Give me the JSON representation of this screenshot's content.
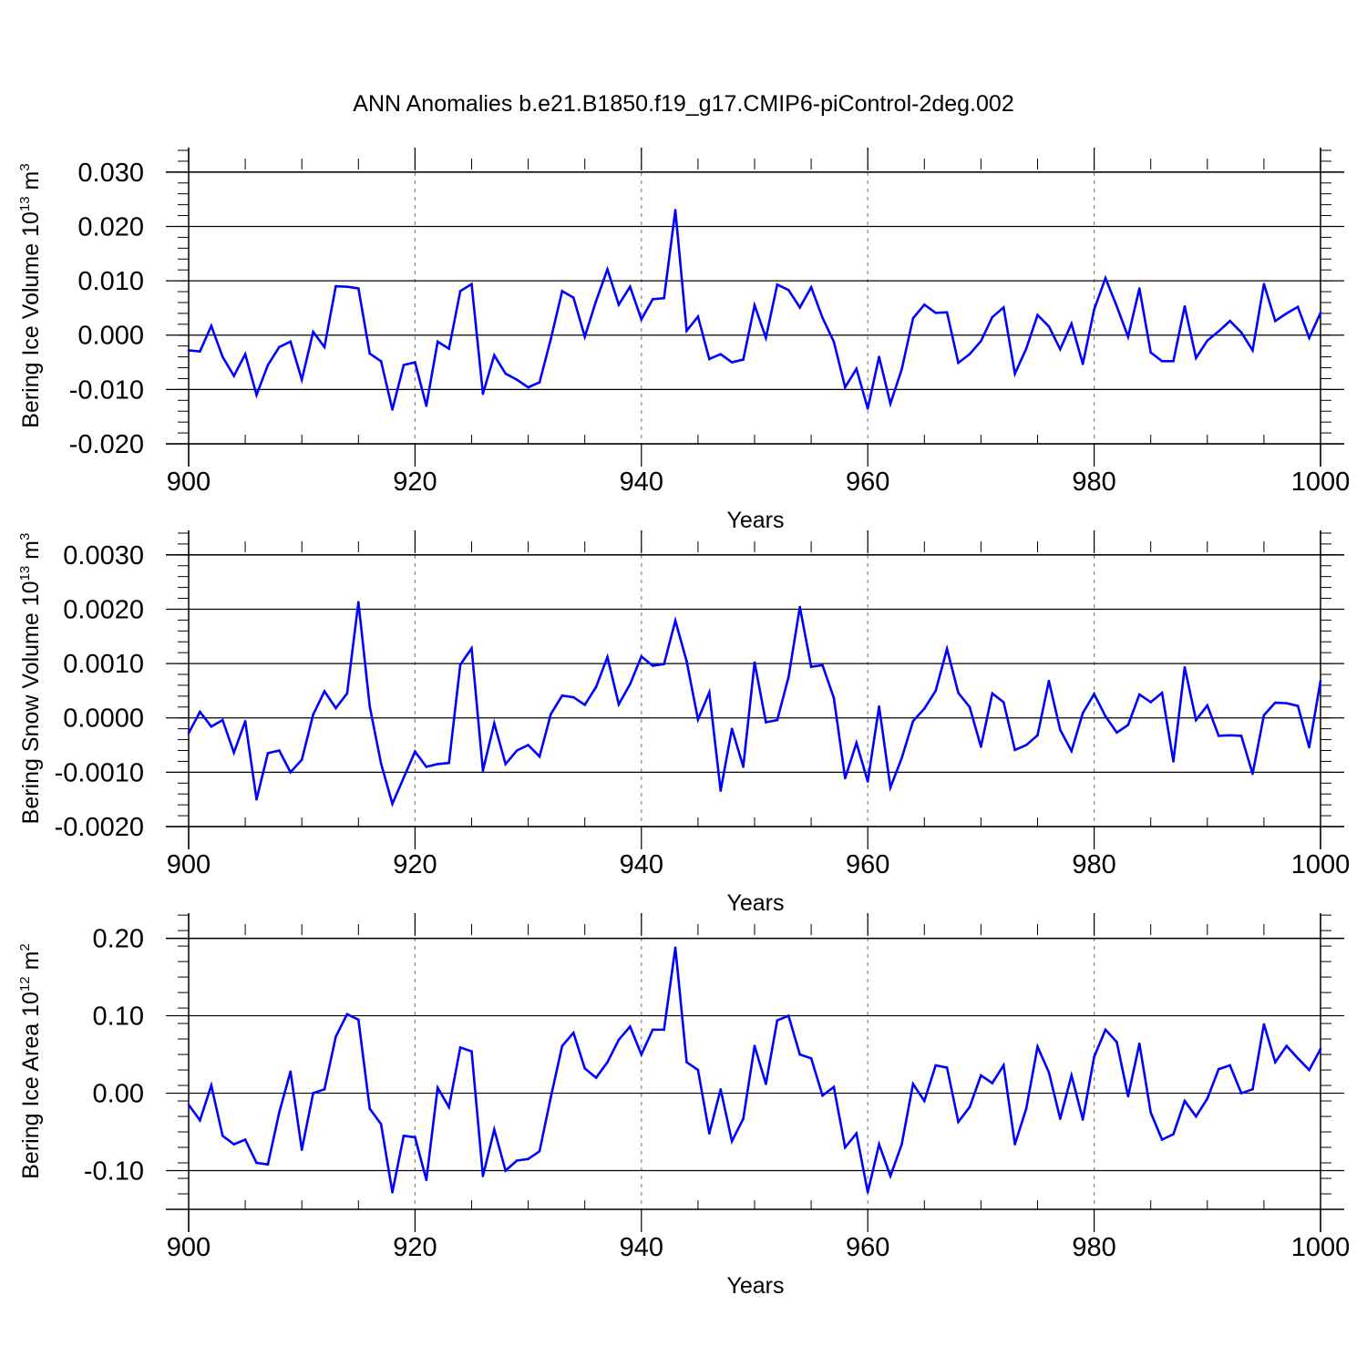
{
  "title": "ANN Anomalies b.e21.B1850.f19_g17.CMIP6-piControl-2deg.002",
  "colors": {
    "line": "#0000ff",
    "axis": "#000000",
    "grid": "#888888"
  },
  "chart_data": [
    {
      "type": "line",
      "ylabel_main": "Bering Ice Volume 10",
      "ylabel_sup": "13",
      "ylabel_unit": " m",
      "ylabel_unit_sup": "3",
      "xlabel": "Years",
      "xlim": [
        900,
        1000
      ],
      "ylim": [
        -0.02,
        0.0345
      ],
      "yticks": [
        -0.02,
        -0.01,
        0.0,
        0.01,
        0.02,
        0.03
      ],
      "ytick_labels": [
        "-0.020",
        "-0.010",
        "0.000",
        "0.010",
        "0.020",
        "0.030"
      ],
      "xticks": [
        900,
        920,
        940,
        960,
        980,
        1000
      ],
      "xtick_labels": [
        "900",
        "920",
        "940",
        "960",
        "980",
        "1000"
      ],
      "series": [
        {
          "name": "Bering Ice Volume",
          "x_start": 900,
          "values": [
            -0.0028,
            -0.003,
            0.0017,
            -0.004,
            -0.0075,
            -0.0035,
            -0.011,
            -0.0055,
            -0.0022,
            -0.0012,
            -0.0082,
            0.0006,
            -0.0022,
            0.009,
            0.0089,
            0.0086,
            -0.0034,
            -0.0048,
            -0.0137,
            -0.0055,
            -0.005,
            -0.013,
            -0.0012,
            -0.0025,
            0.0081,
            0.0094,
            -0.0108,
            -0.0037,
            -0.0071,
            -0.0082,
            -0.0096,
            -0.0087,
            -0.0007,
            0.0081,
            0.0069,
            -0.0003,
            0.0063,
            0.0121,
            0.0056,
            0.0089,
            0.0029,
            0.0066,
            0.0068,
            0.023,
            0.0008,
            0.0034,
            -0.0044,
            -0.0035,
            -0.005,
            -0.0045,
            0.0055,
            -0.0005,
            0.0093,
            0.0083,
            0.0051,
            0.0088,
            0.0032,
            -0.0012,
            -0.0096,
            -0.0062,
            -0.0135,
            -0.004,
            -0.0126,
            -0.0063,
            0.0031,
            0.0056,
            0.0041,
            0.0042,
            -0.0051,
            -0.0035,
            -0.0011,
            0.0033,
            0.0051,
            -0.0071,
            -0.0025,
            0.0037,
            0.0016,
            -0.0026,
            0.0021,
            -0.0053,
            0.0047,
            0.0105,
            0.0053,
            -0.0003,
            0.0086,
            -0.0032,
            -0.0048,
            -0.0048,
            0.0053,
            -0.0042,
            -0.001,
            0.0007,
            0.0026,
            0.0005,
            -0.0028,
            0.0094,
            0.0026,
            0.004,
            0.0052,
            -0.0005,
            0.0041
          ]
        }
      ]
    },
    {
      "type": "line",
      "ylabel_main": "Bering Snow Volume 10",
      "ylabel_sup": "13",
      "ylabel_unit": " m",
      "ylabel_unit_sup": "3",
      "xlabel": "Years",
      "xlim": [
        900,
        1000
      ],
      "ylim": [
        -0.002,
        0.00345
      ],
      "yticks": [
        -0.002,
        -0.001,
        0.0,
        0.001,
        0.002,
        0.003
      ],
      "ytick_labels": [
        "-0.0020",
        "-0.0010",
        "0.0000",
        "0.0010",
        "0.0020",
        "0.0030"
      ],
      "xticks": [
        900,
        920,
        940,
        960,
        980,
        1000
      ],
      "xtick_labels": [
        "900",
        "920",
        "940",
        "960",
        "980",
        "1000"
      ],
      "series": [
        {
          "name": "Bering Snow Volume",
          "x_start": 900,
          "values": [
            -0.00028,
            0.00011,
            -0.00016,
            -4e-05,
            -0.00064,
            -6e-05,
            -0.0015,
            -0.00065,
            -0.0006,
            -0.001,
            -0.00077,
            6e-05,
            0.00049,
            0.00018,
            0.00045,
            0.00213,
            0.00021,
            -0.00084,
            -0.00158,
            -0.0011,
            -0.00062,
            -0.0009,
            -0.00085,
            -0.00083,
            0.00098,
            0.00128,
            -0.00097,
            -0.0001,
            -0.00085,
            -0.0006,
            -0.0005,
            -0.00071,
            7e-05,
            0.00041,
            0.00038,
            0.00024,
            0.00057,
            0.00112,
            0.00025,
            0.00062,
            0.00113,
            0.00096,
            0.00099,
            0.00179,
            0.00104,
            -3e-05,
            0.00047,
            -0.00134,
            -0.0002,
            -0.0009,
            0.00102,
            -8e-05,
            -4e-05,
            0.00075,
            0.00204,
            0.00094,
            0.00097,
            0.00037,
            -0.00111,
            -0.00046,
            -0.00117,
            0.00021,
            -0.00128,
            -0.00074,
            -6e-05,
            0.00017,
            0.0005,
            0.00127,
            0.00046,
            0.0002,
            -0.00053,
            0.00045,
            0.00029,
            -0.00059,
            -0.0005,
            -0.00032,
            0.00068,
            -0.00022,
            -0.00061,
            9e-05,
            0.00044,
            3e-05,
            -0.00027,
            -0.00013,
            0.00043,
            0.00029,
            0.00046,
            -0.0008,
            0.00093,
            -4e-05,
            0.00023,
            -0.00033,
            -0.00032,
            -0.00033,
            -0.00103,
            5e-05,
            0.00028,
            0.00027,
            0.00022,
            -0.00054,
            0.00068
          ]
        }
      ]
    },
    {
      "type": "line",
      "ylabel_main": "Bering Ice Area 10",
      "ylabel_sup": "12",
      "ylabel_unit": " m",
      "ylabel_unit_sup": "2",
      "xlabel": "Years",
      "xlim": [
        900,
        1000
      ],
      "ylim": [
        -0.15,
        0.2325
      ],
      "yticks": [
        -0.1,
        0.0,
        0.1,
        0.2
      ],
      "ytick_labels": [
        "-0.10",
        "0.00",
        "0.10",
        "0.20"
      ],
      "xticks": [
        900,
        920,
        940,
        960,
        980,
        1000
      ],
      "xtick_labels": [
        "900",
        "920",
        "940",
        "960",
        "980",
        "1000"
      ],
      "series": [
        {
          "name": "Bering Ice Area",
          "x_start": 900,
          "values": [
            -0.015,
            -0.035,
            0.01,
            -0.055,
            -0.066,
            -0.06,
            -0.09,
            -0.092,
            -0.025,
            0.028,
            -0.073,
            0.0,
            0.005,
            0.073,
            0.102,
            0.095,
            -0.02,
            -0.04,
            -0.128,
            -0.055,
            -0.057,
            -0.112,
            0.007,
            -0.018,
            0.059,
            0.054,
            -0.107,
            -0.047,
            -0.1,
            -0.087,
            -0.085,
            -0.075,
            -0.005,
            0.061,
            0.078,
            0.032,
            0.02,
            0.04,
            0.069,
            0.086,
            0.05,
            0.082,
            0.082,
            0.188,
            0.04,
            0.03,
            -0.052,
            0.005,
            -0.062,
            -0.033,
            0.061,
            0.012,
            0.094,
            0.1,
            0.05,
            0.045,
            -0.003,
            0.008,
            -0.07,
            -0.052,
            -0.128,
            -0.066,
            -0.107,
            -0.066,
            0.012,
            -0.01,
            0.036,
            0.033,
            -0.037,
            -0.018,
            0.023,
            0.013,
            0.036,
            -0.066,
            -0.02,
            0.06,
            0.027,
            -0.033,
            0.023,
            -0.034,
            0.047,
            0.082,
            0.066,
            -0.004,
            0.064,
            -0.025,
            -0.06,
            -0.053,
            -0.01,
            -0.03,
            -0.007,
            0.031,
            0.036,
            0.0,
            0.005,
            0.089,
            0.04,
            0.061,
            0.045,
            0.03,
            0.057
          ]
        }
      ]
    }
  ]
}
